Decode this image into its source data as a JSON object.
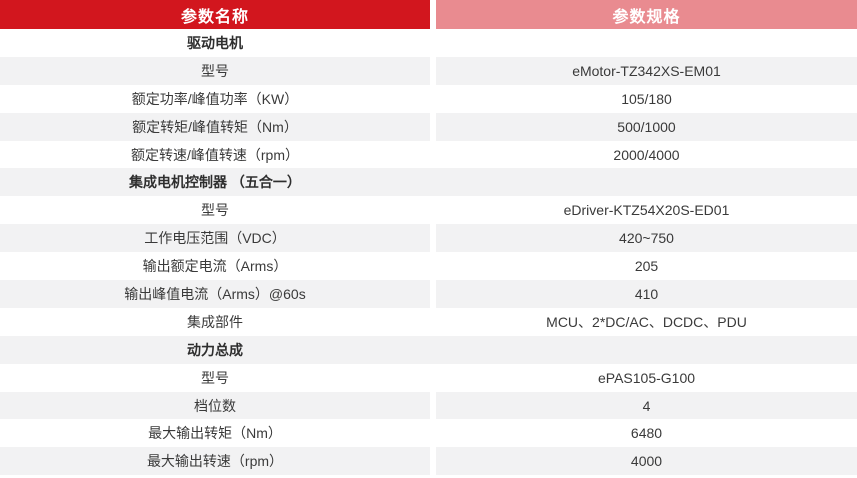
{
  "colors": {
    "header_red": "#d2161e",
    "header_pink": "#e98b90",
    "row_stripe": "#f2f2f3",
    "text": "#3a3a3a"
  },
  "header": {
    "param_name_label": "参数名称",
    "param_spec_label": "参数规格"
  },
  "rows": [
    {
      "type": "section",
      "label": "驱动电机"
    },
    {
      "type": "item",
      "label": "型号",
      "value": "eMotor-TZ342XS-EM01"
    },
    {
      "type": "item",
      "label": "额定功率/峰值功率（KW）",
      "value": "105/180"
    },
    {
      "type": "item",
      "label": "额定转矩/峰值转矩（Nm）",
      "value": "500/1000"
    },
    {
      "type": "item",
      "label": "额定转速/峰值转速（rpm）",
      "value": "2000/4000"
    },
    {
      "type": "section",
      "label": "集成电机控制器 （五合一）"
    },
    {
      "type": "item",
      "label": "型号",
      "value": "eDriver-KTZ54X20S-ED01"
    },
    {
      "type": "item",
      "label": "工作电压范围（VDC）",
      "value": "420~750"
    },
    {
      "type": "item",
      "label": "输出额定电流（Arms）",
      "value": "205"
    },
    {
      "type": "item",
      "label": "输出峰值电流（Arms）@60s",
      "value": "410"
    },
    {
      "type": "item",
      "label": "集成部件",
      "value": "MCU、2*DC/AC、DCDC、PDU"
    },
    {
      "type": "section",
      "label": "动力总成"
    },
    {
      "type": "item",
      "label": "型号",
      "value": "ePAS105-G100"
    },
    {
      "type": "item",
      "label": "档位数",
      "value": "4"
    },
    {
      "type": "item",
      "label": "最大输出转矩（Nm）",
      "value": "6480"
    },
    {
      "type": "item",
      "label": "最大输出转速（rpm）",
      "value": "4000"
    }
  ],
  "chart_data": {
    "type": "table",
    "title": "",
    "columns": [
      "参数名称",
      "参数规格"
    ],
    "sections": [
      {
        "name": "驱动电机",
        "rows": [
          [
            "型号",
            "eMotor-TZ342XS-EM01"
          ],
          [
            "额定功率/峰值功率（KW）",
            "105/180"
          ],
          [
            "额定转矩/峰值转矩（Nm）",
            "500/1000"
          ],
          [
            "额定转速/峰值转速（rpm）",
            "2000/4000"
          ]
        ]
      },
      {
        "name": "集成电机控制器 （五合一）",
        "rows": [
          [
            "型号",
            "eDriver-KTZ54X20S-ED01"
          ],
          [
            "工作电压范围（VDC）",
            "420~750"
          ],
          [
            "输出额定电流（Arms）",
            "205"
          ],
          [
            "输出峰值电流（Arms）@60s",
            "410"
          ],
          [
            "集成部件",
            "MCU、2*DC/AC、DCDC、PDU"
          ]
        ]
      },
      {
        "name": "动力总成",
        "rows": [
          [
            "型号",
            "ePAS105-G100"
          ],
          [
            "档位数",
            "4"
          ],
          [
            "最大输出转矩（Nm）",
            "6480"
          ],
          [
            "最大输出转速（rpm）",
            "4000"
          ]
        ]
      }
    ]
  }
}
